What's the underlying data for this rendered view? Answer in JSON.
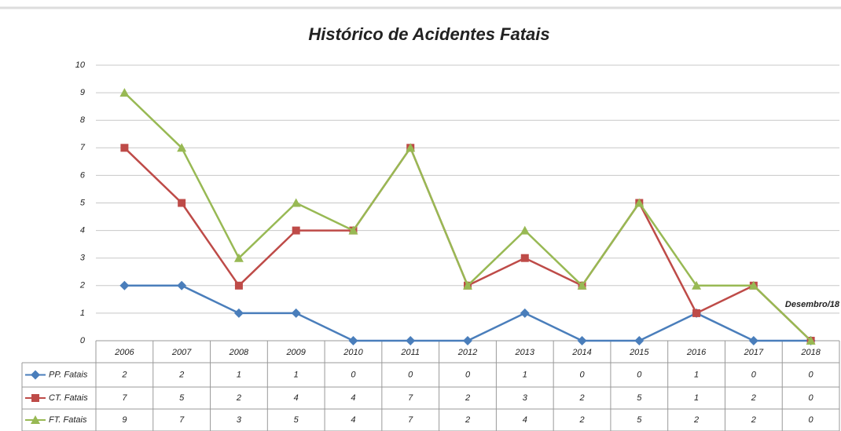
{
  "chart_data": {
    "type": "line",
    "title": "Histórico de  Acidentes Fatais",
    "annotation": "Desembro/18",
    "categories": [
      "2006",
      "2007",
      "2008",
      "2009",
      "2010",
      "2011",
      "2012",
      "2013",
      "2014",
      "2015",
      "2016",
      "2017",
      "2018"
    ],
    "series": [
      {
        "name": "PP. Fatais",
        "color": "#4a7ebb",
        "values": [
          2,
          2,
          1,
          1,
          0,
          0,
          0,
          1,
          0,
          0,
          1,
          0,
          0
        ]
      },
      {
        "name": "CT. Fatais",
        "color": "#be4b48",
        "values": [
          7,
          5,
          2,
          4,
          4,
          7,
          2,
          3,
          2,
          5,
          1,
          2,
          0
        ]
      },
      {
        "name": "FT. Fatais",
        "color": "#98b954",
        "values": [
          9,
          7,
          3,
          5,
          4,
          7,
          2,
          4,
          2,
          5,
          2,
          2,
          0
        ]
      }
    ],
    "ylim": [
      0,
      10
    ],
    "yticks": [
      0,
      1,
      2,
      3,
      4,
      5,
      6,
      7,
      8,
      9,
      10
    ],
    "grid": true
  }
}
